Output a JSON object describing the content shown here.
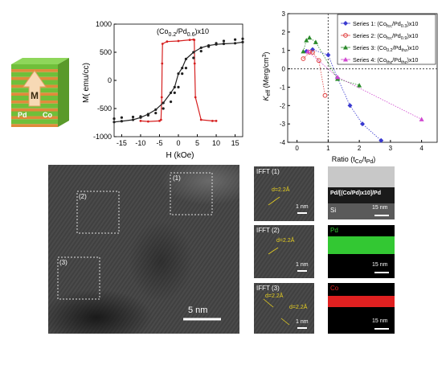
{
  "schematic": {
    "layer_labels": {
      "arrow": "M",
      "left": "Pd",
      "right": "Co"
    },
    "colors": {
      "green": "#6fbf3a",
      "orange": "#e08a3a"
    }
  },
  "chart_data": [
    {
      "type": "line",
      "title": "(Co0.2/Pd0.6)x10",
      "title_parts": {
        "main": "(Co",
        "sub1": "0.2",
        "mid": "/Pd",
        "sub2": "0.6",
        "end": ")x10"
      },
      "xlabel": "H (kOe)",
      "ylabel": "M( emu/cc)",
      "xlim": [
        -17,
        17
      ],
      "ylim": [
        -1000,
        1000
      ],
      "xticks": [
        "-15",
        "-10",
        "-5",
        "0",
        "5",
        "10",
        "15"
      ],
      "yticks": [
        "1000",
        "500",
        "0",
        "-500",
        "-1000"
      ],
      "series": [
        {
          "color": "#d62020",
          "x": [
            -10,
            -8,
            -5,
            -4.6,
            -4.4,
            -4.3,
            -4.2,
            -3,
            0,
            3,
            4,
            4.2,
            4.3,
            4.5,
            6,
            9,
            10
          ],
          "y": [
            -720,
            -730,
            -720,
            -700,
            -300,
            300,
            650,
            690,
            700,
            720,
            725,
            720,
            300,
            -300,
            -700,
            -720,
            -720
          ]
        },
        {
          "color": "#202020",
          "x": [
            -17,
            -15,
            -12,
            -10,
            -8,
            -6,
            -4,
            -2,
            -1,
            0,
            1,
            2,
            4,
            6,
            8,
            10,
            12,
            15,
            17
          ],
          "y": [
            -740,
            -725,
            -700,
            -660,
            -600,
            -520,
            -400,
            -220,
            -120,
            120,
            220,
            380,
            500,
            580,
            620,
            640,
            650,
            660,
            680
          ]
        }
      ]
    },
    {
      "type": "scatter",
      "xlabel_parts": {
        "main": "Ratio (t",
        "sub1": "Co",
        "mid": "/t",
        "sub2": "Pd",
        "end": ")"
      },
      "ylabel_parts": {
        "main": "K",
        "sub": "eff",
        "end": " (Merg/cm",
        "sup": "3",
        "close": ")"
      },
      "xlim": [
        -0.3,
        4.5
      ],
      "ylim": [
        -4,
        3
      ],
      "xticks": [
        "0",
        "1",
        "2",
        "3",
        "4"
      ],
      "yticks": [
        "3",
        "2",
        "1",
        "0",
        "-1",
        "-2",
        "-3",
        "-4"
      ],
      "series": [
        {
          "legend": "Series 1: (Co",
          "sub1": "fcc",
          "mid": "/Pd",
          "sub2": "0.3",
          "end": ")x10",
          "color": "#3a3ad0",
          "marker": "diamond",
          "x": [
            0.3,
            0.5,
            1.0,
            1.3,
            1.7,
            2.1,
            2.7
          ],
          "y": [
            0.95,
            1.05,
            0.75,
            -0.5,
            -2.0,
            -3.0,
            -3.9
          ]
        },
        {
          "legend": "Series 2: (Co",
          "sub1": "fcc",
          "mid": "/Pd",
          "sub2": "0.9",
          "end": ")x10",
          "color": "#e04040",
          "marker": "circle",
          "x": [
            0.2,
            0.4,
            0.5,
            0.7,
            0.9
          ],
          "y": [
            0.55,
            0.9,
            0.9,
            0.45,
            -1.45
          ]
        },
        {
          "legend": "Series 3: (Co",
          "sub1": "0.2",
          "mid": "/Pd",
          "sub2": "thz",
          "end": ")x10",
          "color": "#2a8a2a",
          "marker": "triangle",
          "x": [
            0.2,
            0.3,
            0.4,
            0.6,
            1.3,
            2.0
          ],
          "y": [
            0.95,
            1.55,
            1.7,
            1.45,
            -0.55,
            -0.9
          ]
        },
        {
          "legend": "Series 4: (Co",
          "sub1": "thz",
          "mid": "/Pd",
          "sub2": "thz",
          "end": ")x10",
          "color": "#d048d0",
          "marker": "triangle",
          "x": [
            0.35,
            1.3,
            4.0
          ],
          "y": [
            0.95,
            -0.45,
            -2.75
          ]
        }
      ]
    }
  ],
  "tem": {
    "main": {
      "labels": [
        "(1)",
        "(2)",
        "(3)"
      ],
      "scale": "5 nm"
    },
    "ifft": [
      {
        "title": "IFFT (1)",
        "d": "d=2.2Å",
        "scale": "1 nm"
      },
      {
        "title": "IFFT (2)",
        "d": "d=2.2Å",
        "scale": "1 nm"
      },
      {
        "title": "IFFT (3)",
        "d1": "d=2.2Å",
        "d2": "d=2.2Å",
        "scale": "1 nm"
      }
    ],
    "cross": {
      "stack_label": "Pd/[(Co/Pd)x10]/Pd",
      "substrate": "Si",
      "scale": "15 nm",
      "pd_label": "Pd",
      "pd_scale": "15 nm",
      "co_label": "Co",
      "co_scale": "15 nm",
      "pd_color": "#33c833",
      "co_color": "#e02020"
    }
  }
}
